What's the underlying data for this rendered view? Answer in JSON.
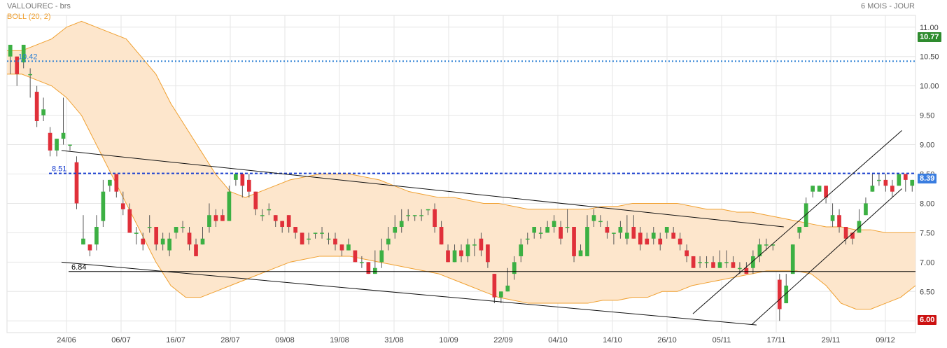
{
  "header": {
    "title": "VALLOUREC - brs",
    "period": "6 MOIS - JOUR",
    "indicator_legend": "BOLL (20, 2)"
  },
  "price_tags": {
    "high_label": "10.77",
    "last_label": "8.39",
    "low_label": "6.00",
    "colors": {
      "high": "#2e8b2e",
      "last": "#3a7de0",
      "low": "#cc1111"
    }
  },
  "chart_data": {
    "type": "candlestick",
    "ylim": [
      5.8,
      11.2
    ],
    "y_ticks": [
      6.0,
      6.5,
      7.0,
      7.5,
      8.0,
      8.5,
      9.0,
      9.5,
      10.0,
      10.5,
      11.0
    ],
    "x_tick_labels": [
      "24/06",
      "06/07",
      "16/07",
      "28/07",
      "09/08",
      "19/08",
      "31/08",
      "10/09",
      "22/09",
      "04/10",
      "14/10",
      "26/10",
      "05/11",
      "17/11",
      "29/11",
      "09/12"
    ],
    "candles": [
      [
        10.5,
        10.7,
        10.5,
        10.2
      ],
      [
        10.5,
        10.2,
        10.5,
        10.0
      ],
      [
        10.4,
        10.7,
        10.6,
        10.3
      ],
      [
        10.2,
        10.2,
        10.3,
        9.8
      ],
      [
        9.9,
        9.4,
        10.0,
        9.3
      ],
      [
        9.5,
        9.6,
        9.8,
        9.4
      ],
      [
        9.2,
        8.9,
        9.3,
        8.8
      ],
      [
        8.9,
        9.1,
        9.1,
        8.8
      ],
      [
        9.1,
        9.2,
        9.8,
        9.0
      ],
      [
        9.0,
        9.0,
        9.0,
        8.9
      ],
      [
        8.7,
        8.0,
        8.8,
        7.9
      ],
      [
        7.3,
        7.4,
        7.8,
        7.3
      ],
      [
        7.3,
        7.2,
        7.3,
        7.1
      ],
      [
        7.3,
        7.6,
        7.8,
        7.2
      ],
      [
        7.7,
        8.2,
        8.4,
        7.6
      ],
      [
        8.3,
        8.4,
        8.4,
        8.2
      ],
      [
        8.5,
        8.2,
        8.5,
        8.1
      ],
      [
        8.0,
        7.9,
        8.2,
        7.8
      ],
      [
        7.9,
        7.5,
        8.0,
        7.5
      ],
      [
        7.5,
        7.5,
        7.6,
        7.3
      ],
      [
        7.4,
        7.3,
        7.5,
        7.2
      ],
      [
        7.6,
        7.6,
        7.8,
        7.5
      ],
      [
        7.6,
        7.3,
        7.6,
        7.2
      ],
      [
        7.3,
        7.4,
        7.5,
        7.2
      ],
      [
        7.2,
        7.4,
        7.5,
        7.1
      ],
      [
        7.5,
        7.6,
        7.6,
        7.4
      ],
      [
        7.6,
        7.6,
        7.7,
        7.5
      ],
      [
        7.5,
        7.3,
        7.6,
        7.2
      ],
      [
        7.3,
        7.1,
        7.4,
        7.1
      ],
      [
        7.3,
        7.4,
        7.6,
        7.3
      ],
      [
        7.6,
        7.8,
        8.0,
        7.5
      ],
      [
        7.8,
        7.7,
        7.9,
        7.6
      ],
      [
        7.8,
        7.7,
        7.9,
        7.7
      ],
      [
        7.7,
        8.2,
        8.3,
        7.7
      ],
      [
        8.4,
        8.5,
        8.5,
        8.3
      ],
      [
        8.5,
        8.3,
        8.5,
        8.1
      ],
      [
        8.4,
        8.2,
        8.5,
        8.1
      ],
      [
        8.2,
        7.9,
        8.2,
        7.8
      ],
      [
        7.8,
        7.8,
        7.9,
        7.7
      ],
      [
        7.9,
        7.9,
        8.0,
        7.8
      ],
      [
        7.8,
        7.7,
        7.8,
        7.6
      ],
      [
        7.7,
        7.6,
        7.7,
        7.5
      ],
      [
        7.8,
        7.6,
        7.8,
        7.5
      ],
      [
        7.6,
        7.5,
        7.6,
        7.4
      ],
      [
        7.5,
        7.3,
        7.5,
        7.3
      ],
      [
        7.4,
        7.4,
        7.5,
        7.3
      ],
      [
        7.5,
        7.5,
        7.5,
        7.4
      ],
      [
        7.5,
        7.5,
        7.6,
        7.4
      ],
      [
        7.4,
        7.4,
        7.5,
        7.3
      ],
      [
        7.4,
        7.3,
        7.5,
        7.2
      ],
      [
        7.3,
        7.2,
        7.3,
        7.1
      ],
      [
        7.2,
        7.3,
        7.4,
        7.2
      ],
      [
        7.2,
        7.0,
        7.2,
        7.0
      ],
      [
        7.0,
        7.0,
        7.1,
        6.9
      ],
      [
        7.0,
        6.8,
        7.0,
        6.8
      ],
      [
        6.8,
        6.9,
        7.2,
        6.8
      ],
      [
        7.0,
        7.2,
        7.4,
        6.9
      ],
      [
        7.3,
        7.4,
        7.6,
        7.2
      ],
      [
        7.5,
        7.6,
        7.8,
        7.4
      ],
      [
        7.6,
        7.7,
        7.9,
        7.5
      ],
      [
        7.8,
        7.8,
        7.9,
        7.7
      ],
      [
        7.8,
        7.8,
        7.8,
        7.7
      ],
      [
        7.8,
        7.8,
        7.9,
        7.7
      ],
      [
        7.9,
        7.9,
        7.9,
        7.8
      ],
      [
        7.9,
        7.6,
        8.0,
        7.5
      ],
      [
        7.6,
        7.3,
        7.7,
        7.3
      ],
      [
        7.2,
        7.0,
        7.3,
        7.0
      ],
      [
        7.0,
        7.2,
        7.3,
        7.0
      ],
      [
        7.2,
        7.1,
        7.3,
        7.0
      ],
      [
        7.1,
        7.3,
        7.4,
        7.0
      ],
      [
        7.3,
        7.3,
        7.4,
        7.1
      ],
      [
        7.4,
        7.2,
        7.5,
        7.1
      ],
      [
        7.3,
        7.0,
        7.3,
        6.9
      ],
      [
        6.8,
        6.4,
        6.8,
        6.3
      ],
      [
        6.4,
        6.5,
        6.5,
        6.3
      ],
      [
        6.5,
        6.6,
        6.9,
        6.5
      ],
      [
        6.8,
        7.0,
        7.1,
        6.7
      ],
      [
        7.1,
        7.3,
        7.4,
        7.0
      ],
      [
        7.4,
        7.4,
        7.5,
        7.3
      ],
      [
        7.5,
        7.6,
        7.6,
        7.4
      ],
      [
        7.5,
        7.5,
        7.6,
        7.4
      ],
      [
        7.5,
        7.6,
        7.7,
        7.5
      ],
      [
        7.6,
        7.7,
        7.8,
        7.5
      ],
      [
        7.6,
        7.4,
        7.7,
        7.3
      ],
      [
        7.6,
        7.6,
        7.9,
        7.5
      ],
      [
        7.6,
        7.1,
        7.6,
        7.0
      ],
      [
        7.1,
        7.2,
        7.3,
        7.1
      ],
      [
        7.1,
        7.6,
        7.8,
        7.1
      ],
      [
        7.7,
        7.8,
        7.9,
        7.6
      ],
      [
        7.7,
        7.7,
        7.8,
        7.6
      ],
      [
        7.6,
        7.5,
        7.7,
        7.4
      ],
      [
        7.5,
        7.5,
        7.5,
        7.3
      ],
      [
        7.5,
        7.6,
        7.7,
        7.4
      ],
      [
        7.4,
        7.5,
        7.8,
        7.3
      ],
      [
        7.6,
        7.4,
        7.8,
        7.4
      ],
      [
        7.5,
        7.3,
        7.6,
        7.2
      ],
      [
        7.4,
        7.3,
        7.5,
        7.3
      ],
      [
        7.4,
        7.5,
        7.6,
        7.3
      ],
      [
        7.4,
        7.3,
        7.5,
        7.2
      ],
      [
        7.5,
        7.6,
        7.6,
        7.4
      ],
      [
        7.5,
        7.4,
        7.6,
        7.4
      ],
      [
        7.4,
        7.3,
        7.5,
        7.2
      ],
      [
        7.2,
        7.1,
        7.3,
        7.0
      ],
      [
        7.1,
        6.9,
        7.1,
        6.9
      ],
      [
        7.0,
        7.0,
        7.1,
        6.9
      ],
      [
        7.0,
        7.0,
        7.1,
        6.9
      ],
      [
        7.0,
        6.9,
        7.1,
        6.9
      ],
      [
        6.9,
        7.0,
        7.2,
        6.9
      ],
      [
        7.0,
        7.0,
        7.2,
        6.9
      ],
      [
        7.0,
        6.9,
        7.1,
        6.9
      ],
      [
        6.9,
        6.9,
        7.0,
        6.8
      ],
      [
        6.9,
        6.8,
        7.0,
        6.8
      ],
      [
        6.9,
        7.1,
        7.2,
        6.8
      ],
      [
        7.1,
        7.3,
        7.4,
        7.0
      ],
      [
        7.3,
        7.3,
        7.4,
        7.2
      ],
      [
        7.3,
        7.3,
        7.3,
        7.2
      ],
      [
        6.7,
        6.2,
        6.8,
        6.0
      ],
      [
        6.3,
        6.6,
        6.8,
        6.3
      ],
      [
        6.8,
        7.3,
        7.3,
        6.8
      ],
      [
        7.5,
        7.6,
        7.6,
        7.4
      ],
      [
        7.6,
        8.0,
        8.1,
        7.6
      ],
      [
        8.2,
        8.3,
        8.3,
        8.1
      ],
      [
        8.2,
        8.3,
        8.3,
        8.2
      ],
      [
        8.3,
        8.1,
        8.3,
        8.0
      ],
      [
        7.7,
        7.8,
        8.0,
        7.6
      ],
      [
        7.8,
        7.6,
        7.9,
        7.5
      ],
      [
        7.6,
        7.4,
        7.6,
        7.3
      ],
      [
        7.5,
        7.4,
        7.5,
        7.3
      ],
      [
        7.5,
        7.7,
        7.9,
        7.5
      ],
      [
        7.8,
        8.0,
        8.1,
        7.8
      ],
      [
        8.2,
        8.3,
        8.5,
        8.2
      ],
      [
        8.4,
        8.4,
        8.5,
        8.3
      ],
      [
        8.4,
        8.3,
        8.5,
        8.2
      ],
      [
        8.3,
        8.2,
        8.4,
        8.1
      ],
      [
        8.3,
        8.5,
        8.5,
        8.3
      ],
      [
        8.5,
        8.4,
        8.5,
        8.2
      ],
      [
        8.3,
        8.4,
        8.4,
        8.2
      ]
    ],
    "bollinger": {
      "upper": [
        10.6,
        10.6,
        10.7,
        10.8,
        11.0,
        11.1,
        11.0,
        10.9,
        10.8,
        10.5,
        10.2,
        9.7,
        9.3,
        8.9,
        8.5,
        8.2,
        8.1,
        8.2,
        8.3,
        8.4,
        8.45,
        8.5,
        8.5,
        8.5,
        8.45,
        8.4,
        8.3,
        8.2,
        8.15,
        8.1,
        8.1,
        8.05,
        8.0,
        8.0,
        7.95,
        7.9,
        7.9,
        7.9,
        7.9,
        7.9,
        7.95,
        7.95,
        8.0,
        8.0,
        8.0,
        8.0,
        7.95,
        7.9,
        7.9,
        7.85,
        7.85,
        7.8,
        7.75,
        7.7,
        7.65,
        7.6,
        7.6,
        7.55,
        7.55,
        7.5,
        7.5,
        7.5
      ],
      "lower": [
        10.2,
        10.2,
        10.1,
        10.0,
        9.8,
        9.5,
        9.0,
        8.5,
        8.0,
        7.5,
        7.0,
        6.6,
        6.4,
        6.4,
        6.5,
        6.6,
        6.7,
        6.8,
        6.9,
        7.0,
        7.05,
        7.1,
        7.1,
        7.1,
        7.05,
        7.0,
        6.95,
        6.9,
        6.85,
        6.8,
        6.7,
        6.6,
        6.5,
        6.4,
        6.35,
        6.3,
        6.3,
        6.3,
        6.3,
        6.3,
        6.35,
        6.35,
        6.4,
        6.4,
        6.5,
        6.5,
        6.6,
        6.65,
        6.7,
        6.75,
        6.8,
        6.85,
        6.85,
        6.85,
        6.8,
        6.6,
        6.3,
        6.2,
        6.2,
        6.3,
        6.4,
        6.6
      ]
    },
    "horizontal_lines": [
      {
        "value": 10.42,
        "label": "10.42",
        "color": "#2a7fd4",
        "style": "dotted"
      },
      {
        "value": 8.51,
        "label": "8.51",
        "color": "#1a3fd0",
        "style": "dashed"
      },
      {
        "value": 6.84,
        "label": "6.84",
        "color": "#000000",
        "style": "solid"
      }
    ],
    "trend_lines": [
      {
        "from": [
          0.06,
          8.9
        ],
        "to": [
          0.855,
          7.6
        ]
      },
      {
        "from": [
          0.06,
          7.0
        ],
        "to": [
          0.825,
          5.93
        ]
      },
      {
        "from": [
          0.755,
          6.12
        ],
        "to": [
          0.985,
          9.24
        ]
      },
      {
        "from": [
          0.82,
          5.94
        ],
        "to": [
          0.985,
          8.25
        ]
      }
    ],
    "colors": {
      "up": "#3cb043",
      "down": "#e0303a",
      "band_fill": "#fde6cc",
      "band_line": "#f0a030",
      "grid": "#e6e6e6"
    }
  }
}
